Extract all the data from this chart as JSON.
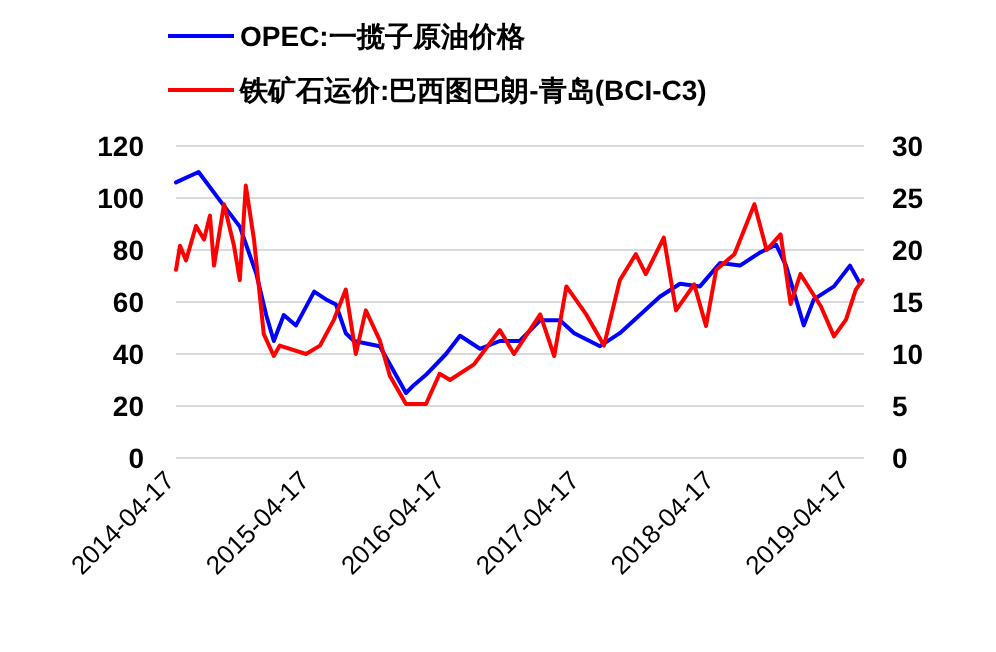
{
  "chart_data": {
    "type": "line",
    "legend": "top",
    "grid": "y",
    "xlim": [
      "2014-04-17",
      "2019-05-24"
    ],
    "xticks": [
      "2014-04-17",
      "2015-04-17",
      "2016-04-17",
      "2017-04-17",
      "2018-04-17",
      "2019-04-17"
    ],
    "ylim": [
      0,
      120
    ],
    "yticks": [
      0,
      20,
      40,
      60,
      80,
      100,
      120
    ],
    "y2lim": [
      0,
      30
    ],
    "y2ticks": [
      0,
      5,
      10,
      15,
      20,
      25,
      30
    ],
    "series": [
      {
        "name": "OPEC:一揽子原油价格",
        "color": "#0000ff",
        "x": [
          "2014-04-17",
          "2014-06-17",
          "2014-08-14",
          "2014-10-07",
          "2014-11-20",
          "2014-12-17",
          "2015-01-07",
          "2015-02-03",
          "2015-03-08",
          "2015-04-26",
          "2015-05-28",
          "2015-06-24",
          "2015-07-21",
          "2015-08-12",
          "2015-10-21",
          "2015-12-31",
          "2016-01-21",
          "2016-02-23",
          "2016-04-17",
          "2016-05-25",
          "2016-07-18",
          "2016-09-10",
          "2016-11-03",
          "2016-12-28",
          "2017-02-20",
          "2017-03-30",
          "2017-06-08",
          "2017-08-01",
          "2017-09-24",
          "2017-11-17",
          "2018-01-11",
          "2018-03-06",
          "2018-04-29",
          "2018-06-22",
          "2018-08-15",
          "2018-09-28",
          "2018-10-25",
          "2018-12-12",
          "2019-01-08",
          "2019-03-04",
          "2019-04-16",
          "2019-05-13"
        ],
        "values": [
          106,
          110,
          99,
          89,
          71,
          55,
          45,
          55,
          51,
          64,
          61,
          59,
          48,
          45,
          43,
          25,
          28,
          32,
          40,
          47,
          42,
          45,
          45,
          53,
          53,
          48,
          43,
          48,
          55,
          62,
          67,
          66,
          75,
          74,
          79,
          82,
          74,
          51,
          61,
          66,
          74,
          67
        ]
      },
      {
        "name": "铁矿石运价:巴西图巴朗-青岛(BCI-C3)",
        "color": "#ff0000",
        "axis": "y2",
        "x": [
          "2014-04-17",
          "2014-04-28",
          "2014-05-14",
          "2014-06-10",
          "2014-07-02",
          "2014-07-18",
          "2014-07-29",
          "2014-08-25",
          "2014-09-21",
          "2014-10-07",
          "2014-10-23",
          "2014-11-14",
          "2014-12-11",
          "2015-01-07",
          "2015-01-23",
          "2015-04-04",
          "2015-05-12",
          "2015-06-19",
          "2015-07-21",
          "2015-08-17",
          "2015-09-13",
          "2015-10-21",
          "2015-11-17",
          "2015-12-31",
          "2016-02-23",
          "2016-03-31",
          "2016-04-28",
          "2016-07-02",
          "2016-09-10",
          "2016-10-18",
          "2016-12-28",
          "2017-02-04",
          "2017-03-09",
          "2017-05-02",
          "2017-06-19",
          "2017-08-01",
          "2017-09-13",
          "2017-10-10",
          "2017-11-28",
          "2017-12-31",
          "2018-02-18",
          "2018-03-22",
          "2018-04-19",
          "2018-06-07",
          "2018-07-31",
          "2018-09-02",
          "2018-10-10",
          "2018-11-06",
          "2018-12-03",
          "2019-01-27",
          "2019-03-04",
          "2019-04-05",
          "2019-05-02",
          "2019-05-20"
        ],
        "values": [
          18.1,
          20.4,
          19,
          22.3,
          21,
          23.3,
          18.5,
          24.4,
          20.4,
          17.1,
          26.2,
          21,
          11.9,
          9.8,
          10.8,
          10,
          10.8,
          13.3,
          16.2,
          10,
          14.2,
          11.3,
          7.9,
          5.2,
          5.2,
          8.1,
          7.5,
          9,
          12.3,
          10,
          13.8,
          9.8,
          16.5,
          13.8,
          10.8,
          17.1,
          19.6,
          17.7,
          21.2,
          14.2,
          16.7,
          12.7,
          18.1,
          19.6,
          24.4,
          20,
          21.5,
          14.8,
          17.7,
          14.6,
          11.7,
          13.3,
          16.2,
          17.1
        ]
      }
    ]
  }
}
